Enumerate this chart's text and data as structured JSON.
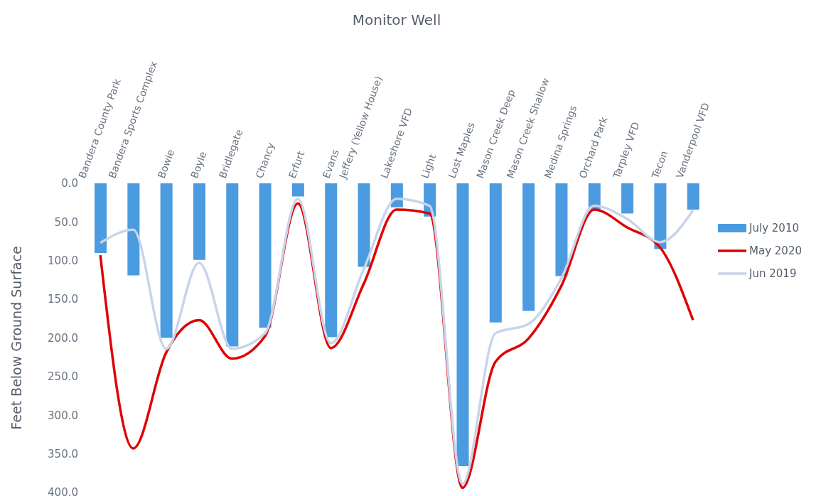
{
  "chart_data": {
    "type": "bar",
    "title": "Monitor Well",
    "ylabel": "Feet Below Ground Surface",
    "categories": [
      "Bandera County Park",
      "Bandera Sports Complex",
      "Bowie",
      "Boyle",
      "Bridlegate",
      "Chancy",
      "Erfurt",
      "Evans",
      "Jeffery (Yellow House)",
      "Lakeshore VFD",
      "Light",
      "Lost Maples",
      "Mason Creek Deep",
      "Mason Creek Shallow",
      "Medina Springs",
      "Orchard Park",
      "Tarpley VFD",
      "Tecon",
      "Vanderpool VFD"
    ],
    "series": [
      {
        "name": "July 2010",
        "color": "#4a9be0",
        "values": [
          90,
          119,
          200,
          99,
          211,
          187,
          17,
          199,
          108,
          31,
          43,
          366,
          180,
          165,
          120,
          34,
          39,
          85,
          34
        ]
      },
      {
        "name": "May 2020",
        "type": "line",
        "color": "#e00000",
        "values": [
          93,
          343,
          219,
          177,
          227,
          198,
          26,
          213,
          130,
          34,
          39,
          394,
          231,
          201,
          133,
          34,
          57,
          83,
          177
        ]
      },
      {
        "name": "Jun 2019",
        "type": "line",
        "color": "#c8d4ea",
        "values": [
          77,
          60,
          214,
          103,
          214,
          194,
          20,
          207,
          111,
          20,
          29,
          389,
          194,
          182,
          123,
          29,
          46,
          76,
          35
        ]
      }
    ],
    "ylim": [
      400,
      0
    ],
    "yticks": [
      {
        "value": 0,
        "label": "0.0"
      },
      {
        "value": 50,
        "label": "50.0"
      },
      {
        "value": 100,
        "label": "100.0"
      },
      {
        "value": 150,
        "label": "150.0"
      },
      {
        "value": 200,
        "label": "200.0"
      },
      {
        "value": 250,
        "label": "250.0"
      },
      {
        "value": 300,
        "label": "300.0"
      },
      {
        "value": 350,
        "label": "350.0"
      },
      {
        "value": 400,
        "label": "400.0"
      }
    ],
    "legend": "right",
    "grid": false,
    "marker": "none"
  }
}
